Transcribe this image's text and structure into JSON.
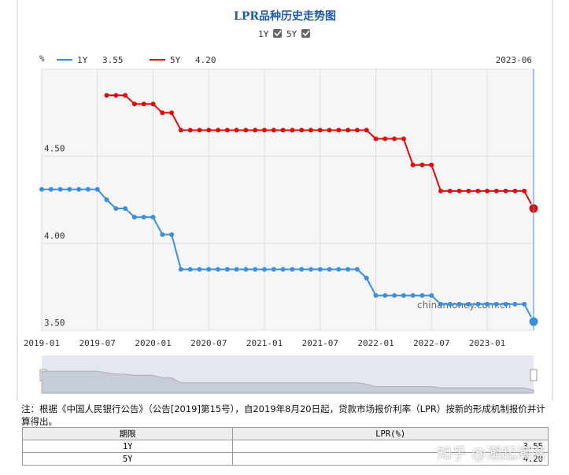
{
  "chart_data": {
    "type": "line",
    "title": "LPR品种历史走势图",
    "ylabel": "%",
    "watermark": "chinamoney.com.cn",
    "legend": {
      "date": "2023-06",
      "values": [
        "3.55",
        "4.20"
      ]
    },
    "categories": [
      "2019-01",
      null,
      null,
      null,
      null,
      null,
      "2019-07",
      null,
      null,
      null,
      null,
      null,
      "2020-01",
      null,
      null,
      null,
      null,
      null,
      "2020-07",
      null,
      null,
      null,
      null,
      null,
      "2021-01",
      null,
      null,
      null,
      null,
      null,
      "2021-07",
      null,
      null,
      null,
      null,
      null,
      "2022-01",
      null,
      null,
      null,
      null,
      null,
      "2022-07",
      null,
      null,
      null,
      null,
      null,
      "2023-01",
      null,
      null,
      null,
      null,
      null
    ],
    "series": [
      {
        "name": "1Y",
        "color": "#3d8fdc",
        "values": [
          4.31,
          4.31,
          4.31,
          4.31,
          4.31,
          4.31,
          4.31,
          4.25,
          4.2,
          4.2,
          4.15,
          4.15,
          4.15,
          4.05,
          4.05,
          3.85,
          3.85,
          3.85,
          3.85,
          3.85,
          3.85,
          3.85,
          3.85,
          3.85,
          3.85,
          3.85,
          3.85,
          3.85,
          3.85,
          3.85,
          3.85,
          3.85,
          3.85,
          3.85,
          3.85,
          3.8,
          3.7,
          3.7,
          3.7,
          3.7,
          3.7,
          3.7,
          3.7,
          3.65,
          3.65,
          3.65,
          3.65,
          3.65,
          3.65,
          3.65,
          3.65,
          3.65,
          3.65,
          3.55
        ]
      },
      {
        "name": "5Y",
        "color": "#e00b0b",
        "values": [
          null,
          null,
          null,
          null,
          null,
          null,
          null,
          4.85,
          4.85,
          4.85,
          4.8,
          4.8,
          4.8,
          4.75,
          4.75,
          4.65,
          4.65,
          4.65,
          4.65,
          4.65,
          4.65,
          4.65,
          4.65,
          4.65,
          4.65,
          4.65,
          4.65,
          4.65,
          4.65,
          4.65,
          4.65,
          4.65,
          4.65,
          4.65,
          4.65,
          4.65,
          4.6,
          4.6,
          4.6,
          4.6,
          4.45,
          4.45,
          4.45,
          4.3,
          4.3,
          4.3,
          4.3,
          4.3,
          4.3,
          4.3,
          4.3,
          4.3,
          4.3,
          4.2
        ]
      }
    ],
    "ylim": [
      3.5,
      5.0
    ],
    "yticks": [
      {
        "value": 3.5,
        "label": "3.50"
      },
      {
        "value": 4.0,
        "label": "4.00"
      },
      {
        "value": 4.5,
        "label": "4.50"
      }
    ],
    "grid": true
  },
  "note": "注：根据《中国人民银行公告》（公告[2019]第15号），自2019年8月20日起，贷款市场报价利率（LPR）按新的形成机制报价并计算得出。",
  "table": {
    "header": [
      "期限",
      "LPR(%)"
    ],
    "rows": [
      [
        "1Y",
        "3.55"
      ],
      [
        "5Y",
        "4.20"
      ]
    ]
  },
  "watermark": "知乎 @潮起潮落"
}
